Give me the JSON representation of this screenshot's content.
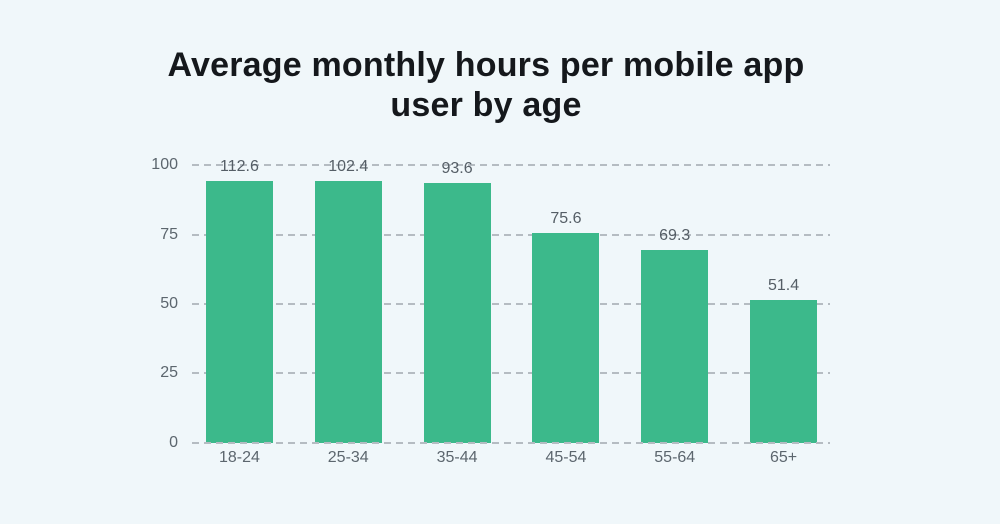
{
  "chart_data": {
    "type": "bar",
    "title": "Average monthly hours per mobile app user by age",
    "categories": [
      "18-24",
      "25-34",
      "35-44",
      "45-54",
      "55-64",
      "65+"
    ],
    "values": [
      112.6,
      102.4,
      93.6,
      75.6,
      69.3,
      51.4
    ],
    "data_labels": [
      "112.6",
      "102.4",
      "93.6",
      "75.6",
      "69.3",
      "51.4"
    ],
    "xlabel": "",
    "ylabel": "",
    "yticks": [
      0,
      25,
      50,
      75,
      100
    ],
    "ytick_labels": [
      "0",
      "25",
      "50",
      "75",
      "100"
    ],
    "ylim": [
      0,
      103
    ],
    "grid": "horizontal-dashed",
    "legend_position": "none",
    "colors": {
      "bar": "#3cb98b",
      "background": "#f0f7fa",
      "gridline": "#b5bcc2",
      "title_text": "#15181c",
      "axis_text": "#5c666e",
      "data_label_text": "#555e66"
    }
  }
}
